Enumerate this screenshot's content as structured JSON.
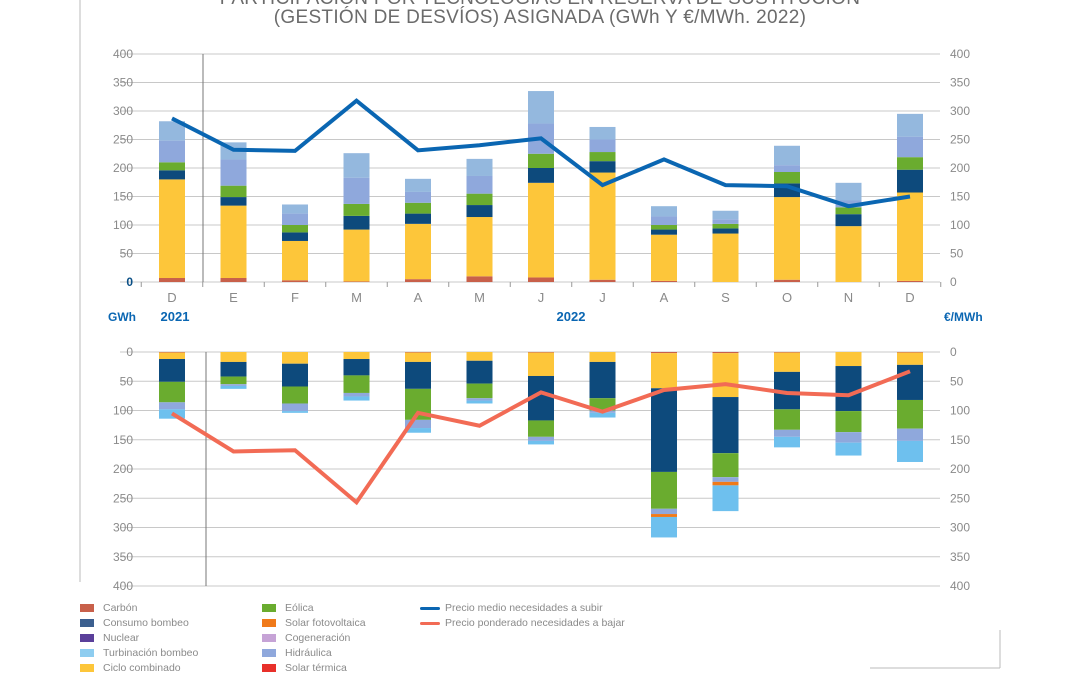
{
  "chart_data": [
    {
      "type": "bar",
      "stacked": true,
      "title_line1": "PARTICIPACIÓN POR TECNOLOGÍAS EN RESERVA DE SUSTITUCIÓN",
      "title_line2": "(GESTIÓN DE DESVÍOS) ASIGNADA (GWh Y €/MWh. 2022)",
      "categories": [
        "D",
        "E",
        "F",
        "M",
        "A",
        "M",
        "J",
        "J",
        "A",
        "S",
        "O",
        "N",
        "D"
      ],
      "years": [
        {
          "label": "2021",
          "index": 0
        },
        {
          "label": "2022",
          "index": 6
        }
      ],
      "ylabel_left": "GWh",
      "ylabel_right": "€/MWh",
      "ylim": [
        0,
        400
      ],
      "yticks": [
        "0",
        "50",
        "100",
        "150",
        "200",
        "250",
        "300",
        "350",
        "400"
      ],
      "grid": true,
      "series": [
        {
          "name": "Carbón",
          "color": "#c8604a",
          "values": [
            7,
            7,
            3,
            1,
            5,
            10,
            8,
            4,
            2,
            0,
            4,
            0,
            2
          ]
        },
        {
          "name": "Ciclo combinado",
          "color": "#fdc63a",
          "values": [
            173,
            127,
            69,
            91,
            97,
            104,
            166,
            188,
            81,
            85,
            145,
            98,
            155
          ]
        },
        {
          "name": "Consumo bombeo",
          "color": "#0d4a7c",
          "values": [
            16,
            15,
            15,
            24,
            18,
            21,
            26,
            20,
            9,
            9,
            24,
            21,
            40
          ]
        },
        {
          "name": "Eólica",
          "color": "#6aac2f",
          "values": [
            14,
            20,
            13,
            21,
            19,
            20,
            25,
            16,
            8,
            8,
            20,
            12,
            22
          ]
        },
        {
          "name": "Hidráulica",
          "color": "#8fa8dc",
          "values": [
            38,
            46,
            20,
            46,
            19,
            31,
            53,
            22,
            15,
            8,
            12,
            12,
            36
          ]
        },
        {
          "name": "Turbinación bombeo",
          "color": "#94b8de",
          "values": [
            34,
            30,
            16,
            43,
            23,
            30,
            57,
            22,
            18,
            15,
            34,
            31,
            40
          ]
        }
      ],
      "line": {
        "name": "Precio medio necesidades a subir",
        "color": "#0a66b2",
        "values": [
          287,
          232,
          230,
          318,
          231,
          240,
          252,
          170,
          215,
          170,
          168,
          133,
          150
        ]
      }
    },
    {
      "type": "bar",
      "stacked": true,
      "inverted": true,
      "categories": [
        "D",
        "E",
        "F",
        "M",
        "A",
        "M",
        "J",
        "J",
        "A",
        "S",
        "O",
        "N",
        "D"
      ],
      "ylim": [
        0,
        400
      ],
      "yticks": [
        "0",
        "50",
        "100",
        "150",
        "200",
        "250",
        "300",
        "350",
        "400"
      ],
      "grid": true,
      "series": [
        {
          "name": "Carbón",
          "color": "#c8604a",
          "values": [
            1,
            0,
            0,
            0,
            1,
            0,
            1,
            0,
            2,
            2,
            1,
            0,
            1
          ]
        },
        {
          "name": "Ciclo combinado",
          "color": "#fdc63a",
          "values": [
            11,
            17,
            20,
            12,
            16,
            15,
            40,
            17,
            60,
            75,
            33,
            24,
            21
          ]
        },
        {
          "name": "Consumo bombeo",
          "color": "#0d4a7c",
          "values": [
            39,
            25,
            39,
            28,
            46,
            39,
            76,
            62,
            143,
            96,
            64,
            77,
            60
          ]
        },
        {
          "name": "Eólica",
          "color": "#6aac2f",
          "values": [
            35,
            13,
            29,
            30,
            53,
            25,
            28,
            21,
            63,
            41,
            35,
            36,
            49
          ]
        },
        {
          "name": "Hidráulica",
          "color": "#8fa8dc",
          "values": [
            12,
            3,
            13,
            6,
            14,
            4,
            7,
            4,
            9,
            8,
            12,
            18,
            21
          ]
        },
        {
          "name": "Solar fotovoltaica",
          "color": "#f07a1a",
          "values": [
            0,
            0,
            0,
            0,
            0,
            0,
            0,
            0,
            5,
            6,
            0,
            0,
            0
          ]
        },
        {
          "name": "Turbinación bombeo",
          "color": "#6ec0ee",
          "values": [
            16,
            5,
            3,
            7,
            8,
            5,
            6,
            8,
            35,
            44,
            18,
            22,
            36
          ]
        }
      ],
      "line": {
        "name": "Precio ponderado necesidades a bajar",
        "color": "#f26b55",
        "values": [
          105,
          170,
          168,
          257,
          104,
          126,
          69,
          102,
          65,
          55,
          70,
          74,
          33
        ]
      }
    }
  ],
  "legend": {
    "bars": [
      {
        "label": "Carbón",
        "color": "#c8604a"
      },
      {
        "label": "Consumo bombeo",
        "color": "#3b5f8f"
      },
      {
        "label": "Nuclear",
        "color": "#5a3f9a"
      },
      {
        "label": "Turbinación bombeo",
        "color": "#8ecdf0"
      },
      {
        "label": "Ciclo combinado",
        "color": "#fdc63a"
      },
      {
        "label": "Eólica",
        "color": "#6aac2f"
      },
      {
        "label": "Solar fotovoltaica",
        "color": "#f07a1a"
      },
      {
        "label": "Cogeneración",
        "color": "#c6a3d6"
      },
      {
        "label": "Hidráulica",
        "color": "#8fa8dc"
      },
      {
        "label": "Solar térmica",
        "color": "#e8302a"
      }
    ],
    "lines": [
      {
        "label": "Precio medio necesidades a subir",
        "color": "#0a66b2"
      },
      {
        "label": "Precio ponderado necesidades a bajar",
        "color": "#f26b55"
      }
    ]
  }
}
